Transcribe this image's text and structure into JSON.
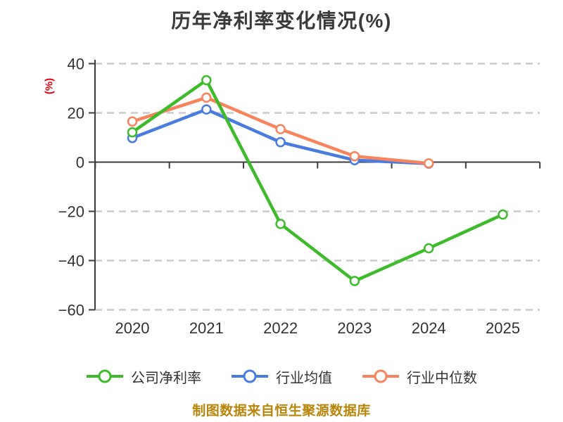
{
  "title": "历年净利率变化情况(%)",
  "footer": "制图数据来自恒生聚源数据库",
  "colors": {
    "accent_green": "#3DBB2B",
    "accent_blue": "#4A7BE0",
    "accent_orange": "#F7845C",
    "grid": "#CBCBCB",
    "axis": "#3C3C3C",
    "text": "#333333",
    "ylabel_red": "#E60012",
    "footer_gold": "#B8860B",
    "background": "#FFFFFF"
  },
  "chart_data": {
    "type": "line",
    "title": "历年净利率变化情况(%)",
    "ylabel": "(%)",
    "xlabel": "",
    "x": [
      "2020",
      "2021",
      "2022",
      "2023",
      "2024",
      "2025"
    ],
    "series": [
      {
        "name": "公司净利率",
        "color": "#3DBB2B",
        "values": [
          12.1,
          33.3,
          -25.1,
          -48.3,
          -35.0,
          -21.3
        ]
      },
      {
        "name": "行业均值",
        "color": "#4A7BE0",
        "values": [
          9.8,
          21.4,
          8.1,
          0.8,
          -0.6,
          null
        ]
      },
      {
        "name": "行业中位数",
        "color": "#F7845C",
        "values": [
          16.5,
          26.2,
          13.4,
          2.4,
          -0.5,
          null
        ]
      }
    ],
    "ylim": [
      -60,
      40
    ],
    "yticks": [
      40,
      20,
      0,
      -20,
      -40,
      -60
    ],
    "ytick_labels": [
      "40",
      "20",
      "0",
      "−20",
      "−40",
      "−60"
    ],
    "grid": "horizontal dashed, solid axis line at 0",
    "legend_position": "bottom",
    "marker": "white-filled circle with colored edge",
    "footnote": "制图数据来自恒生聚源数据库"
  }
}
